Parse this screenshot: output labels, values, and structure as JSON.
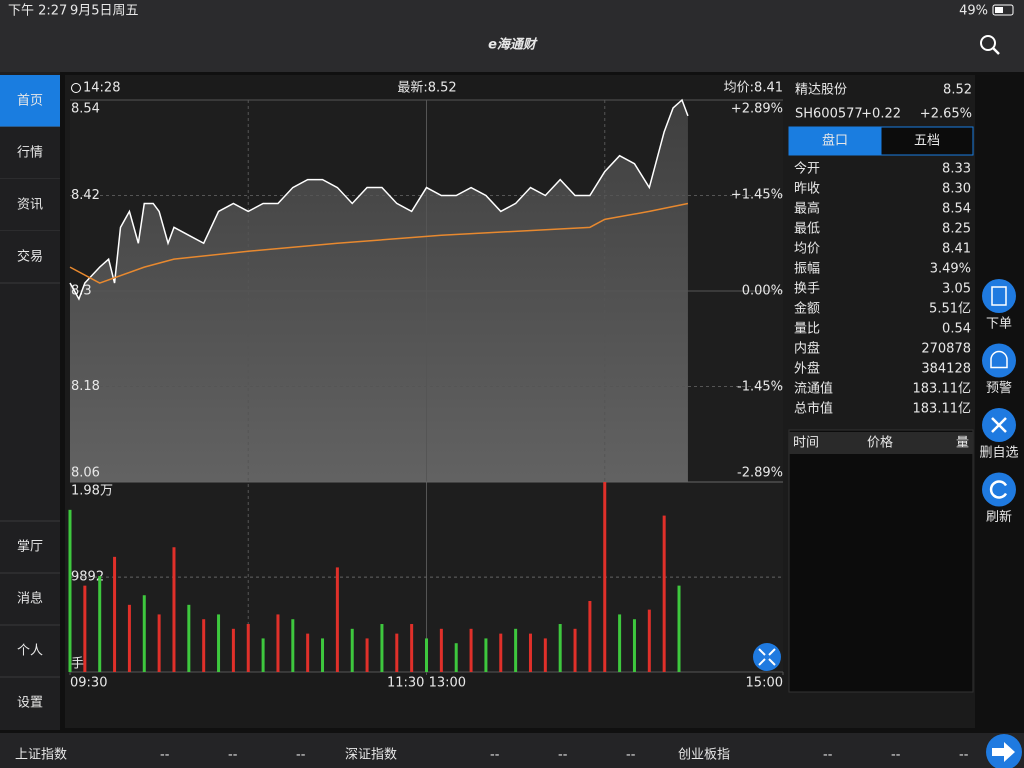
{
  "status_bar": {
    "time": "下午 2:27",
    "date": "9月5日周五",
    "battery": "49%"
  },
  "header": {
    "logo": "e海通财"
  },
  "sidebar": {
    "top": [
      "首页",
      "行情",
      "资讯",
      "交易"
    ],
    "bottom": [
      "掌厅",
      "消息",
      "个人",
      "设置"
    ]
  },
  "chart_data": [
    {
      "type": "line",
      "time_label": "14:28",
      "latest": "最新:8.52",
      "average": "均价:8.41",
      "xlim": [
        0,
        240
      ],
      "xticks": [
        {
          "value": 0,
          "label": "09:30"
        },
        {
          "value": 120,
          "label": "11:30 13:00"
        },
        {
          "value": 240,
          "label": "15:00"
        }
      ],
      "xgrid": [
        60,
        120,
        180
      ],
      "ylim": [
        8.06,
        8.54
      ],
      "yticks": [
        8.54,
        8.42,
        8.3,
        8.18,
        8.06
      ],
      "y2lim": [
        -2.89,
        2.89
      ],
      "y2ticks": [
        {
          "value": 2.89,
          "label": "+2.89%"
        },
        {
          "value": 1.45,
          "label": "+1.45%"
        },
        {
          "value": 0,
          "label": "0.00%"
        },
        {
          "value": -1.45,
          "label": "-1.45%"
        },
        {
          "value": -2.89,
          "label": "-2.89%"
        }
      ],
      "series": [
        {
          "color": "#ffffff",
          "x": [
            0,
            3,
            5,
            10,
            13,
            15,
            17,
            20,
            23,
            25,
            28,
            30,
            33,
            35,
            40,
            45,
            50,
            55,
            60,
            65,
            70,
            75,
            80,
            85,
            90,
            95,
            100,
            105,
            110,
            115,
            120,
            125,
            130,
            135,
            140,
            145,
            150,
            155,
            160,
            165,
            170,
            175,
            180,
            185,
            190,
            195,
            200,
            203,
            206,
            208
          ],
          "values": [
            8.31,
            8.29,
            8.31,
            8.33,
            8.34,
            8.31,
            8.38,
            8.4,
            8.36,
            8.41,
            8.41,
            8.4,
            8.36,
            8.38,
            8.37,
            8.36,
            8.4,
            8.41,
            8.4,
            8.41,
            8.41,
            8.43,
            8.44,
            8.44,
            8.43,
            8.41,
            8.43,
            8.43,
            8.41,
            8.4,
            8.43,
            8.42,
            8.42,
            8.43,
            8.42,
            8.4,
            8.41,
            8.43,
            8.42,
            8.44,
            8.42,
            8.42,
            8.45,
            8.47,
            8.46,
            8.43,
            8.5,
            8.53,
            8.54,
            8.52
          ]
        },
        {
          "color": "#e8892f",
          "x": [
            0,
            10,
            25,
            35,
            60,
            90,
            125,
            175,
            180,
            195,
            208
          ],
          "values": [
            8.33,
            8.31,
            8.33,
            8.34,
            8.35,
            8.36,
            8.37,
            8.38,
            8.39,
            8.4,
            8.41
          ]
        }
      ]
    },
    {
      "type": "bar",
      "xlim": [
        0,
        240
      ],
      "ylim": [
        0,
        19800
      ],
      "yticks": [
        {
          "value": 19800,
          "label": "1.98万"
        },
        9892
      ],
      "unit": "手",
      "x": [
        0,
        5,
        10,
        15,
        20,
        25,
        30,
        35,
        40,
        45,
        50,
        55,
        60,
        65,
        70,
        75,
        80,
        85,
        90,
        95,
        100,
        105,
        110,
        115,
        120,
        125,
        130,
        135,
        140,
        145,
        150,
        155,
        160,
        165,
        170,
        175,
        180,
        185,
        190,
        195,
        200,
        205
      ],
      "values": [
        16900,
        9000,
        10000,
        12000,
        7000,
        8000,
        6000,
        13000,
        7000,
        5500,
        6000,
        4500,
        5000,
        3500,
        6000,
        5500,
        4000,
        3500,
        10900,
        4500,
        3500,
        5000,
        4000,
        5000,
        3500,
        4500,
        3000,
        4500,
        3500,
        4000,
        4500,
        4000,
        3500,
        5000,
        4500,
        7400,
        19800,
        6000,
        5500,
        6500,
        16300,
        9000
      ],
      "colors": [
        "#3ec83e",
        "#e0302a",
        "#3ec83e",
        "#e0302a",
        "#e0302a",
        "#3ec83e",
        "#e0302a",
        "#e0302a",
        "#3ec83e",
        "#e0302a",
        "#3ec83e",
        "#e0302a",
        "#e0302a",
        "#3ec83e",
        "#e0302a",
        "#3ec83e",
        "#e0302a",
        "#3ec83e",
        "#e0302a",
        "#3ec83e",
        "#e0302a",
        "#3ec83e",
        "#e0302a",
        "#e0302a",
        "#3ec83e",
        "#e0302a",
        "#3ec83e",
        "#e0302a",
        "#3ec83e",
        "#e0302a",
        "#3ec83e",
        "#e0302a",
        "#e0302a",
        "#3ec83e",
        "#e0302a",
        "#e0302a",
        "#e0302a",
        "#3ec83e",
        "#3ec83e",
        "#e0302a",
        "#e0302a",
        "#3ec83e"
      ]
    }
  ],
  "quote": {
    "name": "精达股份",
    "price": "8.52",
    "code": "SH600577",
    "change": "+0.22",
    "pct": "+2.65%",
    "tabs": [
      "盘口",
      "五档"
    ],
    "stats": [
      {
        "label": "今开",
        "value": "8.33",
        "color": "#e0302a"
      },
      {
        "label": "昨收",
        "value": "8.30",
        "color": "#e8e8e8"
      },
      {
        "label": "最高",
        "value": "8.54",
        "color": "#e0302a"
      },
      {
        "label": "最低",
        "value": "8.25",
        "color": "#3ec83e"
      },
      {
        "label": "均价",
        "value": "8.41",
        "color": "#e0302a"
      },
      {
        "label": "振幅",
        "value": "3.49%",
        "color": "#e8e8e8"
      },
      {
        "label": "换手",
        "value": "3.05",
        "color": "#e8e8e8"
      },
      {
        "label": "金额",
        "value": "5.51亿",
        "color": "#e8e8e8"
      },
      {
        "label": "量比",
        "value": "0.54",
        "color": "#e8e8e8"
      },
      {
        "label": "内盘",
        "value": "270878",
        "color": "#3ec83e"
      },
      {
        "label": "外盘",
        "value": "384128",
        "color": "#e0302a"
      },
      {
        "label": "流通值",
        "value": "183.11亿",
        "color": "#e8e8e8"
      },
      {
        "label": "总市值",
        "value": "183.11亿",
        "color": "#e8e8e8"
      }
    ],
    "trade_header": [
      "时间",
      "价格",
      "量"
    ]
  },
  "side_buttons": [
    "下单",
    "预警",
    "删自选",
    "刷新"
  ],
  "index_bar": [
    {
      "name": "上证指数",
      "values": [
        "--",
        "--",
        "--"
      ]
    },
    {
      "name": "深证指数",
      "values": [
        "--",
        "--",
        "--"
      ]
    },
    {
      "name": "创业板指",
      "values": [
        "--",
        "--",
        "--"
      ]
    }
  ]
}
